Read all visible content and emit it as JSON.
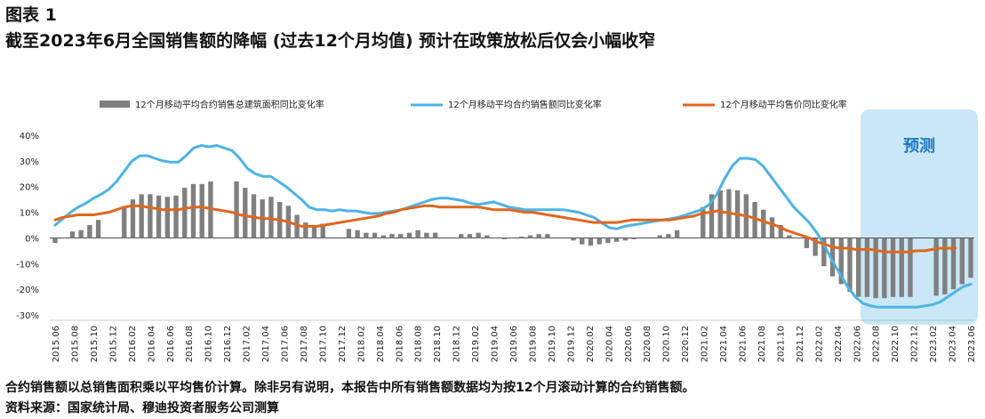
{
  "header": {
    "figure_label": "图表 1",
    "title": "截至2023年6月全国销售额的降幅 (过去12个月均值) 预计在政策放松后仅会小幅收窄"
  },
  "footer": {
    "note": "合约销售额以总销售面积乘以平均售价计算。除非另有说明，本报告中所有销售额数据均为按12个月滚动计算的合约销售额。",
    "source": "资料来源：国家统计局、穆迪投资者服务公司测算"
  },
  "colors": {
    "bars": "#7f7f7f",
    "sales_line": "#4db3e6",
    "price_line": "#e0661f",
    "forecast_band": "#bfe3f5",
    "forecast_text": "#1f78c8"
  },
  "chart_data": {
    "type": "bar",
    "title": "",
    "xlabel": "",
    "ylabel": "",
    "ylim": [
      -30,
      40
    ],
    "y_ticks": [
      "-30%",
      "-20%",
      "-10%",
      "0%",
      "10%",
      "20%",
      "30%",
      "40%"
    ],
    "y_tick_values": [
      -30,
      -20,
      -10,
      0,
      10,
      20,
      30,
      40
    ],
    "grid": false,
    "legend_position": "top",
    "x_start": "2015.06",
    "x_end": "2023.06",
    "x_tick_labels": [
      "2015.06",
      "2015.08",
      "2015.10",
      "2015.12",
      "2016.02",
      "2016.04",
      "2016.06",
      "2016.08",
      "2016.10",
      "2016.12",
      "2017.02",
      "2017.04",
      "2017.06",
      "2017.08",
      "2017.10",
      "2017.12",
      "2018.02",
      "2018.04",
      "2018.06",
      "2018.08",
      "2018.10",
      "2018.12",
      "2019.02",
      "2019.04",
      "2019.06",
      "2019.08",
      "2019.10",
      "2019.12",
      "2020.02",
      "2020.04",
      "2020.06",
      "2020.08",
      "2020.10",
      "2020.12",
      "2021.02",
      "2021.04",
      "2021.06",
      "2021.08",
      "2021.10",
      "2021.12",
      "2022.02",
      "2022.04",
      "2022.06",
      "2022.08",
      "2022.10",
      "2022.12",
      "2023.02",
      "2023.04",
      "2023.06"
    ],
    "forecast": {
      "label": "预测",
      "from": "2022.07",
      "to": "2023.06"
    },
    "series": [
      {
        "name": "12个月移动平均合约销售总建筑面积同比变化率",
        "type": "bar",
        "values": [
          -2,
          0,
          2.5,
          3,
          5,
          7,
          null,
          null,
          12,
          15,
          17,
          17,
          16.5,
          16,
          16.5,
          19.5,
          21,
          21,
          22,
          null,
          null,
          22,
          19.5,
          17,
          15,
          16,
          14,
          12.5,
          9,
          6,
          5,
          5.5,
          null,
          null,
          3.5,
          3,
          2,
          2,
          1,
          1.5,
          1.5,
          2,
          3,
          2,
          2,
          null,
          null,
          1.5,
          1.5,
          2,
          1,
          0,
          -0.5,
          0,
          0.5,
          1,
          1.5,
          1.5,
          null,
          null,
          -1,
          -2.5,
          -3,
          -2.5,
          -2,
          -1.5,
          -1,
          -0.5,
          null,
          null,
          1,
          1.5,
          3,
          null,
          null,
          12,
          17,
          18.5,
          19,
          18.5,
          17,
          14,
          11,
          8,
          5,
          1,
          0,
          -4,
          -7,
          -11,
          -15,
          -18,
          -21,
          -23,
          -23,
          -23.5,
          -23.5,
          -23,
          -23,
          -23,
          null,
          null,
          -22.5,
          -22,
          -20,
          -18,
          -15.5
        ]
      },
      {
        "name": "12个月移动平均合约销售额同比变化率",
        "type": "line",
        "values": [
          5,
          7.5,
          10,
          12,
          13.5,
          15.5,
          17,
          19,
          22,
          26,
          30,
          32,
          32,
          31,
          30,
          29.5,
          29.5,
          32,
          35,
          36,
          35.5,
          36,
          35,
          34,
          31,
          27,
          25,
          24,
          24,
          22,
          20,
          17.5,
          15,
          12,
          11,
          11,
          10.5,
          11,
          10.5,
          10.5,
          10,
          9.5,
          9.5,
          10,
          10.5,
          11,
          12,
          13,
          14,
          15,
          15.5,
          15.5,
          15,
          14.5,
          13.5,
          13,
          13.5,
          14,
          13,
          12,
          11.5,
          11,
          11,
          11,
          11,
          11,
          11,
          10.5,
          10,
          9,
          8,
          6,
          4,
          3.5,
          4.5,
          5,
          5.5,
          6,
          6.5,
          7,
          7.5,
          8,
          9,
          10,
          11,
          13,
          17,
          23,
          28,
          31,
          31,
          30.5,
          28,
          24,
          20,
          16,
          12,
          9,
          6,
          2,
          -3,
          -9,
          -14,
          -19,
          -23,
          -25.5,
          -26.5,
          -27,
          -27,
          -27,
          -27,
          -27,
          -27,
          -26.5,
          -26,
          -25,
          -23,
          -21,
          -19,
          -18
        ]
      },
      {
        "name": "12个月移动平均售价同比变化率",
        "type": "line",
        "values": [
          7,
          8,
          8.5,
          9,
          9,
          9,
          9.5,
          10,
          11,
          12,
          12.5,
          12.5,
          12,
          11.5,
          11,
          11,
          11,
          11.5,
          12,
          12,
          11.5,
          11,
          10.5,
          10,
          9,
          8.5,
          8,
          7.5,
          7.5,
          7,
          6.5,
          5.5,
          4.5,
          4.5,
          4.5,
          5,
          5.5,
          6,
          6.5,
          7,
          7.5,
          8,
          8.5,
          9.5,
          10,
          11,
          11.5,
          12,
          12.5,
          12.5,
          12,
          12,
          12,
          12,
          12,
          12,
          11.5,
          11,
          11,
          11,
          10.5,
          10,
          10,
          9.5,
          9,
          8.5,
          8,
          7.5,
          7,
          6.5,
          6,
          6,
          6,
          6,
          6.5,
          7,
          7,
          7,
          7,
          7,
          7,
          7.5,
          8,
          8.5,
          9.5,
          10,
          10.5,
          10,
          9.5,
          9,
          8.5,
          7.5,
          6.5,
          5.5,
          4.5,
          3,
          2,
          1,
          0,
          -1.5,
          -2.5,
          -3.5,
          -4,
          -4,
          -4.5,
          -4.5,
          -4.5,
          -5,
          -5.5,
          -5.5,
          -5.5,
          -5.5,
          -5,
          -5,
          -4.5,
          -4,
          -4,
          -4
        ]
      }
    ]
  }
}
